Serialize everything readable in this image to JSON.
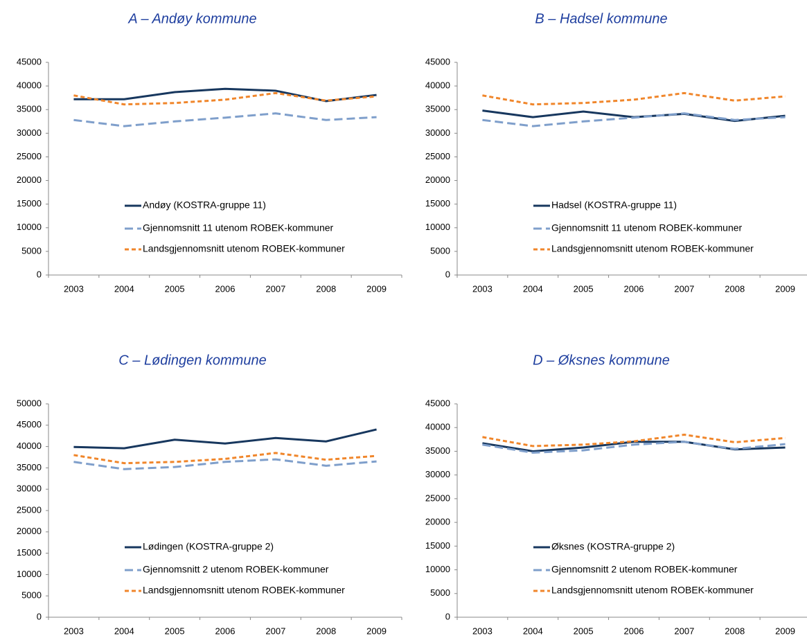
{
  "chart_data": [
    {
      "type": "line",
      "title": "A – Andøy kommune",
      "categories": [
        "2003",
        "2004",
        "2005",
        "2006",
        "2007",
        "2008",
        "2009"
      ],
      "ylim": [
        0,
        45000
      ],
      "yticks": [
        0,
        5000,
        10000,
        15000,
        20000,
        25000,
        30000,
        35000,
        40000,
        45000
      ],
      "legend": "lower center",
      "series": [
        {
          "name": "Andøy (KOSTRA-gruppe 11)",
          "color": "#17375e",
          "dash": "solid",
          "values": [
            37200,
            37200,
            38700,
            39400,
            39000,
            36800,
            38100
          ]
        },
        {
          "name": "Gjennomsnitt 11 utenom ROBEK-kommuner",
          "color": "#7f9fcb",
          "dash": "long-dash",
          "values": [
            32800,
            31500,
            32500,
            33300,
            34200,
            32800,
            33400
          ]
        },
        {
          "name": "Landsgjennomsnitt utenom ROBEK-kommuner",
          "color": "#f0862b",
          "dash": "dash",
          "values": [
            38000,
            36100,
            36400,
            37100,
            38500,
            36900,
            37800
          ]
        }
      ]
    },
    {
      "type": "line",
      "title": "B – Hadsel kommune",
      "categories": [
        "2003",
        "2004",
        "2005",
        "2006",
        "2007",
        "2008",
        "2009"
      ],
      "ylim": [
        0,
        45000
      ],
      "yticks": [
        0,
        5000,
        10000,
        15000,
        20000,
        25000,
        30000,
        35000,
        40000,
        45000
      ],
      "legend": "lower center",
      "series": [
        {
          "name": "Hadsel (KOSTRA-gruppe 11)",
          "color": "#17375e",
          "dash": "solid",
          "values": [
            34800,
            33400,
            34600,
            33400,
            34100,
            32600,
            33700
          ]
        },
        {
          "name": "Gjennomsnitt 11 utenom ROBEK-kommuner",
          "color": "#7f9fcb",
          "dash": "long-dash",
          "values": [
            32800,
            31500,
            32500,
            33300,
            34200,
            32800,
            33400
          ]
        },
        {
          "name": "Landsgjennomsnitt utenom ROBEK-kommuner",
          "color": "#f0862b",
          "dash": "dash",
          "values": [
            38000,
            36100,
            36400,
            37100,
            38500,
            36900,
            37800
          ]
        }
      ]
    },
    {
      "type": "line",
      "title": "C – Lødingen kommune",
      "categories": [
        "2003",
        "2004",
        "2005",
        "2006",
        "2007",
        "2008",
        "2009"
      ],
      "ylim": [
        0,
        50000
      ],
      "yticks": [
        0,
        5000,
        10000,
        15000,
        20000,
        25000,
        30000,
        35000,
        40000,
        45000,
        50000
      ],
      "legend": "lower center",
      "series": [
        {
          "name": "Lødingen (KOSTRA-gruppe 2)",
          "color": "#17375e",
          "dash": "solid",
          "values": [
            39900,
            39600,
            41600,
            40700,
            42000,
            41200,
            44000
          ]
        },
        {
          "name": "Gjennomsnitt 2 utenom ROBEK-kommuner",
          "color": "#7f9fcb",
          "dash": "long-dash",
          "values": [
            36400,
            34700,
            35200,
            36400,
            37000,
            35500,
            36500
          ]
        },
        {
          "name": "Landsgjennomsnitt utenom ROBEK-kommuner",
          "color": "#f0862b",
          "dash": "dash",
          "values": [
            38000,
            36100,
            36400,
            37100,
            38500,
            36900,
            37800
          ]
        }
      ]
    },
    {
      "type": "line",
      "title": "D – Øksnes kommune",
      "categories": [
        "2003",
        "2004",
        "2005",
        "2006",
        "2007",
        "2008",
        "2009"
      ],
      "ylim": [
        0,
        45000
      ],
      "yticks": [
        0,
        5000,
        10000,
        15000,
        20000,
        25000,
        30000,
        35000,
        40000,
        45000
      ],
      "legend": "lower center",
      "series": [
        {
          "name": "Øksnes (KOSTRA-gruppe 2)",
          "color": "#17375e",
          "dash": "solid",
          "values": [
            36700,
            35000,
            35800,
            37000,
            37000,
            35400,
            35800
          ]
        },
        {
          "name": "Gjennomsnitt 2 utenom ROBEK-kommuner",
          "color": "#7f9fcb",
          "dash": "long-dash",
          "values": [
            36400,
            34700,
            35200,
            36400,
            37000,
            35500,
            36500
          ]
        },
        {
          "name": "Landsgjennomsnitt utenom ROBEK-kommuner",
          "color": "#f0862b",
          "dash": "dash",
          "values": [
            38000,
            36100,
            36400,
            37100,
            38500,
            36900,
            37800
          ]
        }
      ]
    }
  ]
}
